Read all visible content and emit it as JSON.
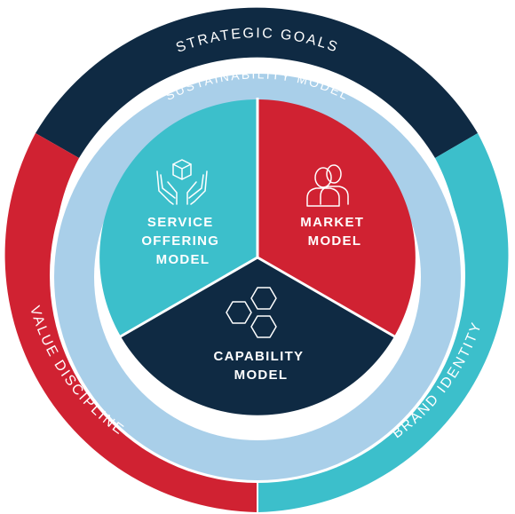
{
  "colors": {
    "navy": "#0f2a43",
    "red": "#d02232",
    "teal": "#3cbfcb",
    "light_blue": "#a9cfe9",
    "white": "#ffffff"
  },
  "outer_ring": {
    "top": "STRATEGIC GOALS",
    "left": "VALUE DISCIPLINE",
    "right": "BRAND IDENTITY"
  },
  "middle_ring": {
    "label": "SUSTAINABILITY MODEL"
  },
  "segments": {
    "service": {
      "line1": "SERVICE",
      "line2": "OFFERING",
      "line3": "MODEL",
      "icon": "hands-box-icon"
    },
    "market": {
      "line1": "MARKET",
      "line2": "MODEL",
      "icon": "people-icon"
    },
    "capability": {
      "line1": "CAPABILITY",
      "line2": "MODEL",
      "icon": "hexagons-icon"
    }
  }
}
